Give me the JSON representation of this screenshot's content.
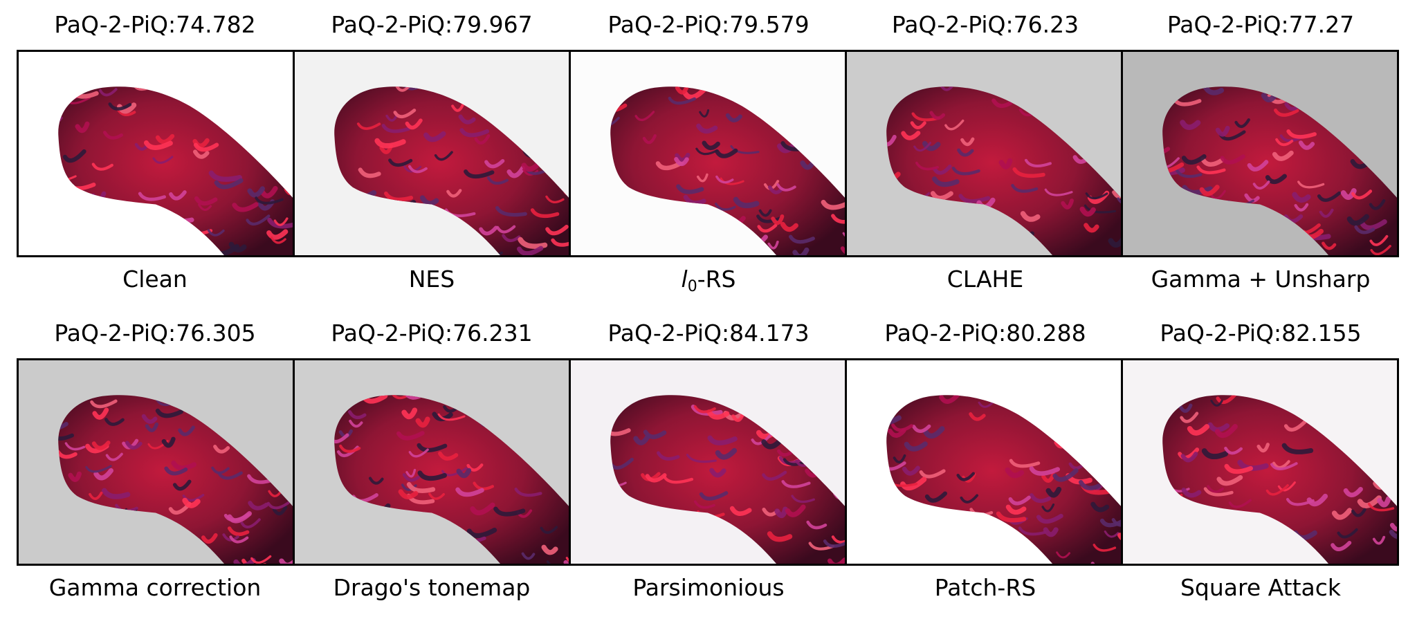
{
  "figure": {
    "rows": [
      {
        "panels": [
          {
            "score": "PaQ-2-PiQ:74.782",
            "caption": "Clean",
            "background": "#ffffff"
          },
          {
            "score": "PaQ-2-PiQ:79.967",
            "caption": "NES",
            "background": "#f2f2f2"
          },
          {
            "score": "PaQ-2-PiQ:79.579",
            "caption_var": "l",
            "caption_sub": "0",
            "caption_rest": "-RS",
            "background": "#fcfcfc"
          },
          {
            "score": "PaQ-2-PiQ:76.23",
            "caption": "CLAHE",
            "background": "#cccccc"
          },
          {
            "score": "PaQ-2-PiQ:77.27",
            "caption": "Gamma + Unsharp",
            "background": "#b9b9b9"
          }
        ]
      },
      {
        "panels": [
          {
            "score": "PaQ-2-PiQ:76.305",
            "caption": "Gamma correction",
            "background": "#cbcbcb"
          },
          {
            "score": "PaQ-2-PiQ:76.231",
            "caption": "Drago's tonemap",
            "background": "#cfcfcf"
          },
          {
            "score": "PaQ-2-PiQ:84.173",
            "caption": "Parsimonious",
            "background": "#f4f1f4"
          },
          {
            "score": "PaQ-2-PiQ:80.288",
            "caption": "Patch-RS",
            "background": "#ffffff"
          },
          {
            "score": "PaQ-2-PiQ:82.155",
            "caption": "Square Attack",
            "background": "#f6f3f5"
          }
        ]
      }
    ]
  }
}
